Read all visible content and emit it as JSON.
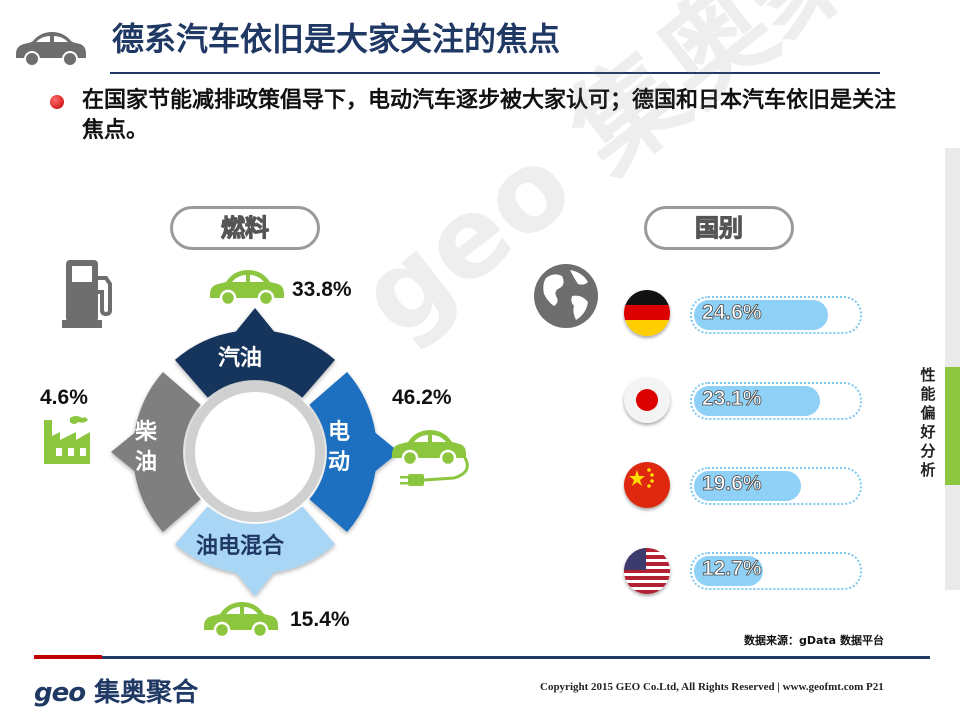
{
  "header": {
    "title": "德系汽车依旧是大家关注的焦点"
  },
  "bullet": {
    "text": "在国家节能减排政策倡导下，电动汽车逐步被大家认可；德国和日本汽车依旧是关注焦点。"
  },
  "sections": {
    "fuel_label": "燃料",
    "country_label": "国别"
  },
  "fuel_ring": {
    "segments": [
      "汽油",
      "电动",
      "油电混合",
      "柴油"
    ]
  },
  "watermark": {
    "text": "geo 集奥聚合"
  },
  "side_tab": {
    "text": "性能偏好分析"
  },
  "source": {
    "text": "数据来源：gData  数据平台"
  },
  "footer": {
    "logo_latin": "geo",
    "logo_cn": "集奥聚合",
    "copyright": "Copyright 2015 GEO Co.Ltd, All Rights Reserved  |  www.geofmt.com",
    "page_number": "P21"
  },
  "colors": {
    "navy": "#1f3864",
    "petrol": "#17365d",
    "electric": "#1f6fbf",
    "hybrid": "#a9d6f5",
    "diesel": "#7f7f7f",
    "green": "#8cc63f",
    "bar_fill": "#8fd0f7",
    "red": "#c00000"
  },
  "icons": [
    "car-icon",
    "fuel-pump-icon",
    "factory-icon",
    "electric-car-icon",
    "globe-icon",
    "flag-germany-icon",
    "flag-japan-icon",
    "flag-china-icon",
    "flag-usa-icon"
  ],
  "chart_data": [
    {
      "type": "pie",
      "title": "燃料",
      "categories": [
        "汽油",
        "电动",
        "油电混合",
        "柴油"
      ],
      "values": [
        33.8,
        46.2,
        15.4,
        4.6
      ],
      "labels": [
        "33.8%",
        "46.2%",
        "15.4%",
        "4.6%"
      ]
    },
    {
      "type": "bar",
      "title": "国别",
      "categories": [
        "Germany",
        "Japan",
        "China",
        "USA"
      ],
      "values": [
        24.6,
        23.1,
        19.6,
        12.7
      ],
      "labels": [
        "24.6%",
        "23.1%",
        "19.6%",
        "12.7%"
      ],
      "ylim": [
        0,
        30
      ]
    }
  ]
}
